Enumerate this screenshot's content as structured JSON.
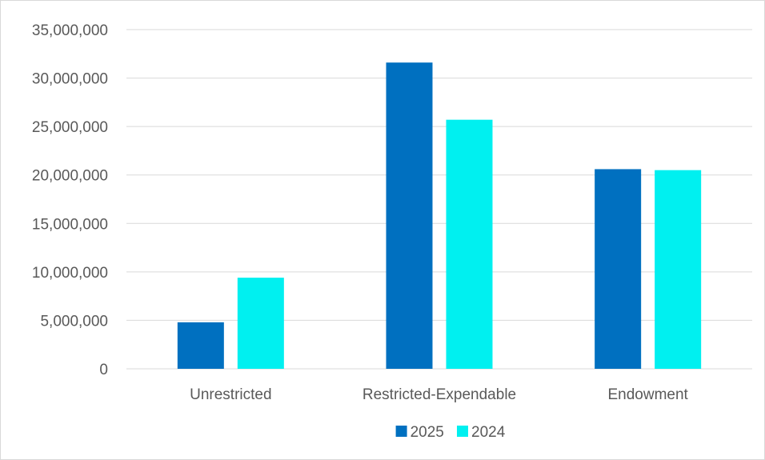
{
  "chart_data": {
    "type": "bar",
    "categories": [
      "Unrestricted",
      "Restricted-Expendable",
      "Endowment"
    ],
    "series": [
      {
        "name": "2025",
        "color": "#0070C0",
        "values": [
          4800000,
          31600000,
          20600000
        ]
      },
      {
        "name": "2024",
        "color": "#00F0F0",
        "values": [
          9400000,
          25700000,
          20500000
        ]
      }
    ],
    "ylim": [
      0,
      35000000
    ],
    "ytick_values": [
      0,
      5000000,
      10000000,
      15000000,
      20000000,
      25000000,
      30000000,
      35000000
    ],
    "ytick_labels": [
      "0",
      "5,000,000",
      "10,000,000",
      "15,000,000",
      "20,000,000",
      "25,000,000",
      "30,000,000",
      "35,000,000"
    ],
    "grid": true,
    "legend_position": "bottom",
    "gridline_color": "#d9d9d9",
    "title": "",
    "xlabel": "",
    "ylabel": ""
  }
}
